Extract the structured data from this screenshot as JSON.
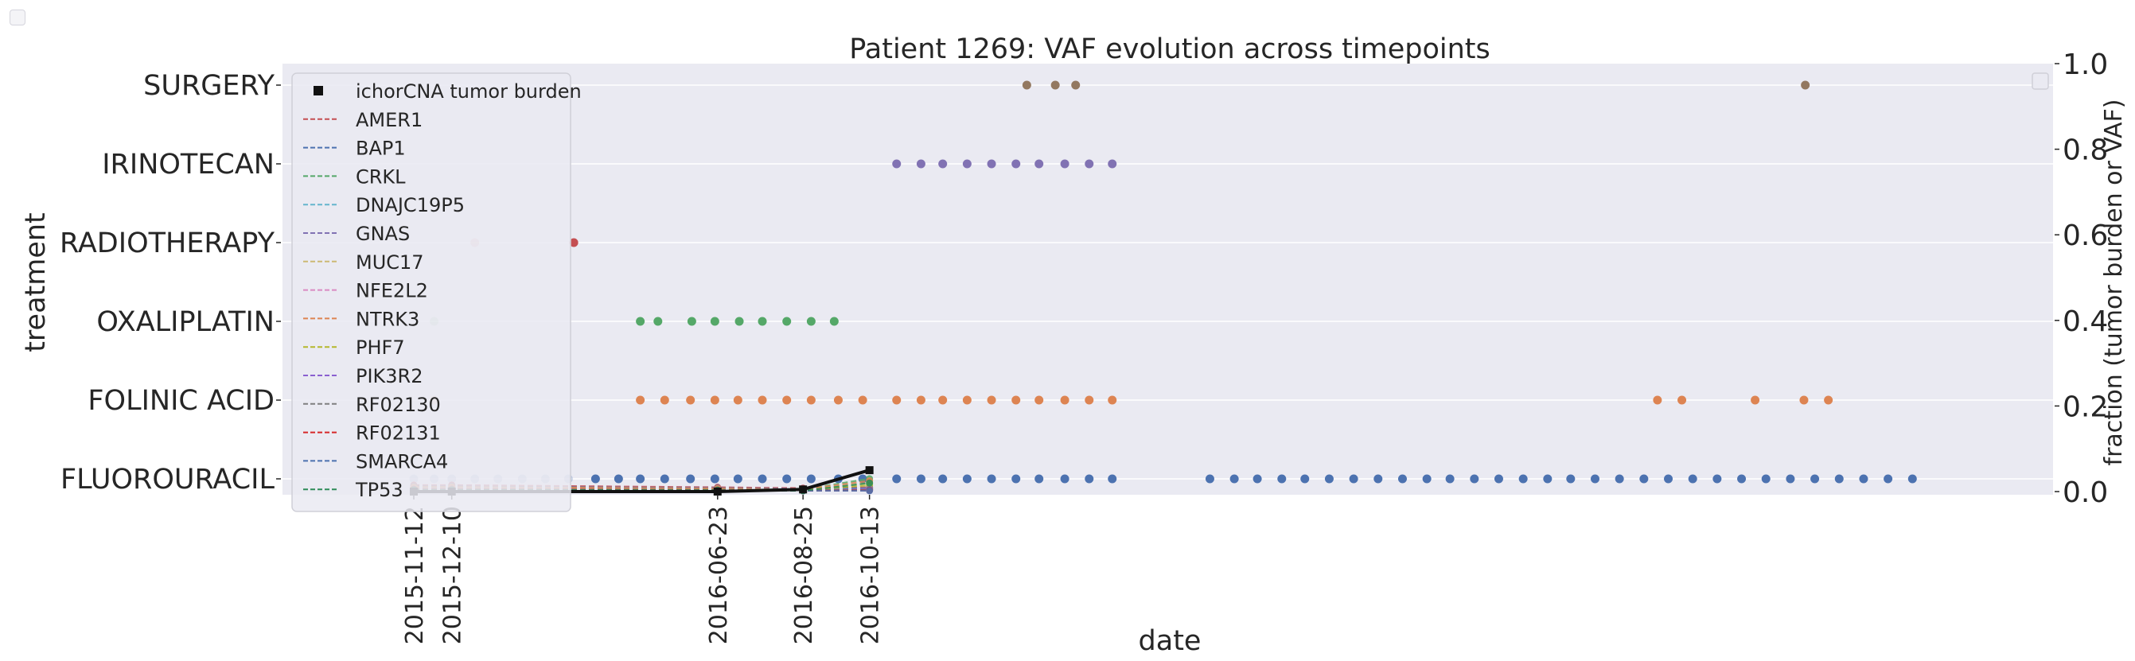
{
  "chart_data": {
    "type": "scatter",
    "title": "Patient 1269: VAF evolution across timepoints",
    "xlabel": "date",
    "ylabel_left": "treatment",
    "ylabel_right": "fraction (tumor burden or VAF)",
    "right_ylim": [
      0,
      1
    ],
    "right_yticks": [
      "0.0",
      "0.2",
      "0.4",
      "0.6",
      "0.8",
      "1.0"
    ],
    "treatments": [
      "SURGERY",
      "IRINOTECAN",
      "RADIOTHERAPY",
      "OXALIPLATIN",
      "FOLINIC ACID",
      "FLUOROURACIL"
    ],
    "date_range_days": [
      0,
      1150
    ],
    "timepoints": [
      {
        "label": "2015-11-12",
        "day": 0,
        "color": "#0000ff"
      },
      {
        "label": "2015-12-10",
        "day": 28,
        "color": "#0000ff"
      },
      {
        "label": "2016-06-23",
        "day": 224,
        "color": "#0000ff"
      },
      {
        "label": "2016-08-25",
        "day": 287,
        "color": "#0000ff"
      },
      {
        "label": "2016-10-13",
        "day": 336,
        "color": "#262626"
      }
    ],
    "treatment_series": [
      {
        "name": "SURGERY",
        "color": "#937860",
        "days": [
          452,
          473,
          488,
          1026
        ]
      },
      {
        "name": "IRINOTECAN",
        "color": "#8172b3",
        "days": [
          356,
          374,
          390,
          408,
          426,
          444,
          461,
          480,
          498,
          515
        ]
      },
      {
        "name": "RADIOTHERAPY",
        "color": "#c44e52",
        "faded_days": [
          45
        ],
        "days": [
          118
        ]
      },
      {
        "name": "OXALIPLATIN",
        "color": "#55a868",
        "faded_days": [
          15
        ],
        "days": [
          167,
          180,
          205,
          222,
          240,
          257,
          275,
          293,
          310
        ]
      },
      {
        "name": "FOLINIC ACID",
        "color": "#dd8452",
        "faded_days": [
          15
        ],
        "days": [
          167,
          185,
          204,
          222,
          239,
          257,
          275,
          293,
          313,
          331,
          356,
          374,
          390,
          408,
          426,
          444,
          461,
          480,
          498,
          515,
          917,
          935,
          989,
          1025,
          1043
        ]
      },
      {
        "name": "FLUOROURACIL",
        "color": "#4c72b0",
        "faded_days": [
          0,
          15,
          28,
          45,
          62,
          80,
          97,
          114
        ],
        "days": [
          134,
          151,
          167,
          185,
          204,
          222,
          239,
          257,
          275,
          293,
          313,
          331,
          356,
          374,
          390,
          408,
          426,
          444,
          461,
          480,
          498,
          515,
          587,
          605,
          622,
          640,
          657,
          675,
          693,
          711,
          729,
          747,
          764,
          782,
          800,
          818,
          836,
          853,
          871,
          889,
          907,
          925,
          943,
          961,
          979,
          997,
          1015,
          1033,
          1051,
          1069,
          1087,
          1105
        ]
      }
    ],
    "tumor_burden": {
      "name": "ichorCNA tumor burden",
      "color": "#111111",
      "days": [
        0,
        28,
        224,
        287,
        336
      ],
      "values": [
        0.0,
        0.0,
        0.0,
        0.005,
        0.05
      ]
    },
    "genes": [
      {
        "name": "AMER1",
        "color": "#c44e52",
        "values": [
          0.015,
          0.015,
          0.01,
          0.008,
          0.01
        ]
      },
      {
        "name": "BAP1",
        "color": "#4c72b0",
        "values": [
          0.012,
          0.012,
          0.008,
          0.006,
          0.008
        ]
      },
      {
        "name": "CRKL",
        "color": "#55a868",
        "values": [
          0.01,
          0.01,
          0.006,
          0.005,
          0.03
        ]
      },
      {
        "name": "DNAJC19P5",
        "color": "#64b5cd",
        "values": [
          0.008,
          0.008,
          0.005,
          0.004,
          0.006
        ]
      },
      {
        "name": "GNAS",
        "color": "#8172b3",
        "values": [
          0.006,
          0.006,
          0.004,
          0.003,
          0.005
        ]
      },
      {
        "name": "MUC17",
        "color": "#ccb974",
        "values": [
          0.009,
          0.009,
          0.006,
          0.004,
          0.02
        ]
      },
      {
        "name": "NFE2L2",
        "color": "#da8bc3",
        "values": [
          0.007,
          0.007,
          0.005,
          0.003,
          0.004
        ]
      },
      {
        "name": "NTRK3",
        "color": "#dd8452",
        "values": [
          0.011,
          0.011,
          0.007,
          0.005,
          0.025
        ]
      },
      {
        "name": "PHF7",
        "color": "#b5b82c",
        "values": [
          0.005,
          0.005,
          0.004,
          0.003,
          0.015
        ]
      },
      {
        "name": "PIK3R2",
        "color": "#8a5fd0",
        "values": [
          0.004,
          0.004,
          0.003,
          0.002,
          0.006
        ]
      },
      {
        "name": "RF02130",
        "color": "#7f7f7f",
        "values": [
          0.006,
          0.006,
          0.004,
          0.003,
          0.004
        ]
      },
      {
        "name": "RF02131",
        "color": "#d62728",
        "values": [
          0.005,
          0.005,
          0.003,
          0.002,
          0.003
        ]
      },
      {
        "name": "SMARCA4",
        "color": "#4c72b0",
        "values": [
          0.003,
          0.003,
          0.002,
          0.002,
          0.002
        ]
      },
      {
        "name": "TP53",
        "color": "#2e8b57",
        "values": [
          0.004,
          0.004,
          0.003,
          0.002,
          0.02
        ]
      }
    ],
    "legend": {
      "placement": "top-left"
    },
    "grid": true
  }
}
